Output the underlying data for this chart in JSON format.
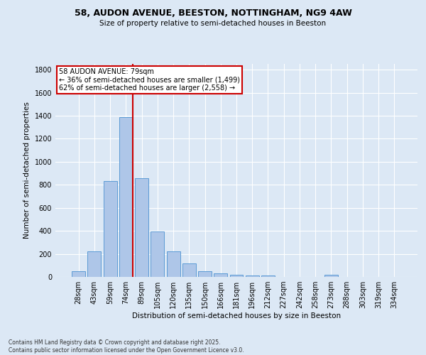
{
  "title1": "58, AUDON AVENUE, BEESTON, NOTTINGHAM, NG9 4AW",
  "title2": "Size of property relative to semi-detached houses in Beeston",
  "xlabel": "Distribution of semi-detached houses by size in Beeston",
  "ylabel": "Number of semi-detached properties",
  "bar_labels": [
    "28sqm",
    "43sqm",
    "59sqm",
    "74sqm",
    "89sqm",
    "105sqm",
    "120sqm",
    "135sqm",
    "150sqm",
    "166sqm",
    "181sqm",
    "196sqm",
    "212sqm",
    "227sqm",
    "242sqm",
    "258sqm",
    "273sqm",
    "288sqm",
    "303sqm",
    "319sqm",
    "334sqm"
  ],
  "bar_values": [
    50,
    220,
    830,
    1390,
    860,
    395,
    225,
    120,
    50,
    30,
    20,
    15,
    15,
    0,
    0,
    0,
    20,
    0,
    0,
    0,
    0
  ],
  "bar_color": "#aec6e8",
  "bar_edgecolor": "#5b9bd5",
  "vline_pos": 3.42,
  "annotation_title": "58 AUDON AVENUE: 79sqm",
  "annotation_line1": "← 36% of semi-detached houses are smaller (1,499)",
  "annotation_line2": "62% of semi-detached houses are larger (2,558) →",
  "annotation_box_color": "#ffffff",
  "annotation_box_edgecolor": "#cc0000",
  "vline_color": "#cc0000",
  "ylim": [
    0,
    1850
  ],
  "yticks": [
    0,
    200,
    400,
    600,
    800,
    1000,
    1200,
    1400,
    1600,
    1800
  ],
  "background_color": "#dce8f5",
  "footer_line1": "Contains HM Land Registry data © Crown copyright and database right 2025.",
  "footer_line2": "Contains public sector information licensed under the Open Government Licence v3.0."
}
